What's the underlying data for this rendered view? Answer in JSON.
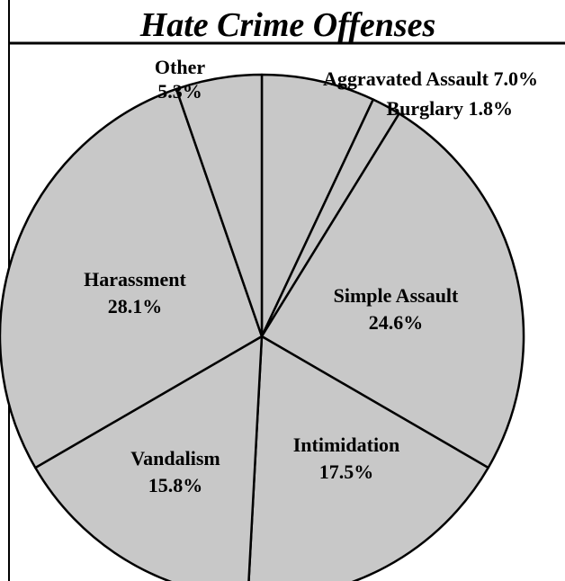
{
  "chart_data": {
    "type": "pie",
    "title": "Hate Crime Offenses",
    "slice_color": "#c8c8c8",
    "outline_color": "#000000",
    "slices": [
      {
        "category": "Aggravated Assault",
        "value": 7.0,
        "label": "Aggravated Assault 7.0%"
      },
      {
        "category": "Burglary",
        "value": 1.8,
        "label": "Burglary 1.8%"
      },
      {
        "category": "Simple Assault",
        "value": 24.6,
        "label": "Simple Assault",
        "value_label": "24.6%"
      },
      {
        "category": "Intimidation",
        "value": 17.5,
        "label": "Intimidation",
        "value_label": "17.5%"
      },
      {
        "category": "Vandalism",
        "value": 15.8,
        "label": "Vandalism",
        "value_label": "15.8%"
      },
      {
        "category": "Harassment",
        "value": 28.1,
        "label": "Harassment",
        "value_label": "28.1%"
      },
      {
        "category": "Other",
        "value": 5.3,
        "label": "Other",
        "value_label": "5.3%"
      }
    ]
  }
}
